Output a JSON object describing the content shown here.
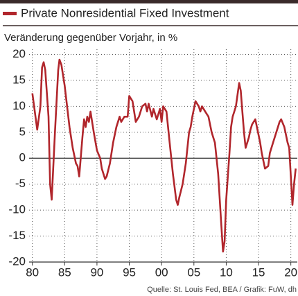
{
  "chart_data": {
    "type": "line",
    "legend_label": "Private Nonresidential Fixed Investment",
    "subtitle": "Veränderung gegenüber Vorjahr, in %",
    "source": "Quelle: St. Louis Fed, BEA / Grafik: FuW, dh",
    "color": "#b1262c",
    "grid": true,
    "xlim": [
      1979.5,
      2021
    ],
    "ylim": [
      -20,
      21
    ],
    "xticks": [
      {
        "value": 1980,
        "label": "80"
      },
      {
        "value": 1985,
        "label": "85"
      },
      {
        "value": 1990,
        "label": "90"
      },
      {
        "value": 1995,
        "label": "95"
      },
      {
        "value": 2000,
        "label": "00"
      },
      {
        "value": 2005,
        "label": "05"
      },
      {
        "value": 2010,
        "label": "10"
      },
      {
        "value": 2015,
        "label": "15"
      },
      {
        "value": 2020,
        "label": "20"
      }
    ],
    "yticks": [
      20,
      15,
      10,
      5,
      0,
      -5,
      -10,
      -15,
      -20
    ],
    "x": [
      1980.0,
      1980.75,
      1981.25,
      1981.5,
      1981.75,
      1982.0,
      1982.5,
      1982.75,
      1983.0,
      1983.5,
      1984.0,
      1984.2,
      1984.5,
      1985.0,
      1985.75,
      1986.25,
      1986.75,
      1987.0,
      1987.25,
      1987.75,
      1988.0,
      1988.25,
      1988.5,
      1988.75,
      1989.0,
      1989.5,
      1990.0,
      1990.5,
      1990.75,
      1991.25,
      1991.5,
      1992.0,
      1992.5,
      1993.0,
      1993.5,
      1993.75,
      1994.25,
      1994.75,
      1995.0,
      1995.5,
      1996.0,
      1996.5,
      1997.0,
      1997.5,
      1997.75,
      1998.0,
      1998.5,
      1998.75,
      1999.25,
      1999.75,
      2000.0,
      2000.25,
      2000.75,
      2001.25,
      2001.75,
      2002.25,
      2002.5,
      2002.75,
      2003.25,
      2003.75,
      2004.25,
      2004.5,
      2004.75,
      2005.25,
      2005.75,
      2006.0,
      2006.25,
      2006.75,
      2007.25,
      2007.75,
      2008.25,
      2008.75,
      2009.25,
      2009.5,
      2009.75,
      2010.0,
      2010.5,
      2010.75,
      2011.0,
      2011.25,
      2011.5,
      2012.0,
      2012.25,
      2012.5,
      2012.75,
      2013.0,
      2013.5,
      2013.75,
      2014.0,
      2014.5,
      2014.75,
      2015.25,
      2015.5,
      2016.0,
      2016.5,
      2016.75,
      2017.25,
      2017.75,
      2018.25,
      2018.5,
      2019.0,
      2019.5,
      2019.75,
      2020.25,
      2020.5,
      2020.75
    ],
    "values": [
      12.5,
      5.5,
      10,
      17.5,
      18.5,
      17,
      8,
      -5,
      -8,
      5,
      17,
      19,
      18,
      14,
      6,
      2,
      -1,
      -1.5,
      -3.5,
      4,
      7.5,
      6,
      8,
      7,
      9,
      5,
      1.5,
      0,
      -2,
      -4,
      -3.5,
      -1,
      3,
      6,
      8,
      7,
      8,
      8,
      12,
      11,
      7,
      8,
      10,
      10.5,
      9,
      10.5,
      8,
      9.5,
      7.5,
      9.5,
      7,
      10,
      9,
      3,
      -3,
      -8,
      -9,
      -7.5,
      -5,
      -1,
      5,
      6,
      8,
      11,
      10,
      9,
      10,
      9,
      8,
      5,
      3,
      -3,
      -13,
      -18,
      -16,
      -8,
      1,
      6,
      8,
      9,
      10,
      14.5,
      13,
      9,
      5,
      2,
      4,
      5.5,
      6.5,
      7.5,
      6,
      3,
      1,
      -2,
      -1.5,
      1,
      3,
      5,
      7,
      7.5,
      6,
      3,
      2,
      -9,
      -5,
      -2
    ]
  }
}
